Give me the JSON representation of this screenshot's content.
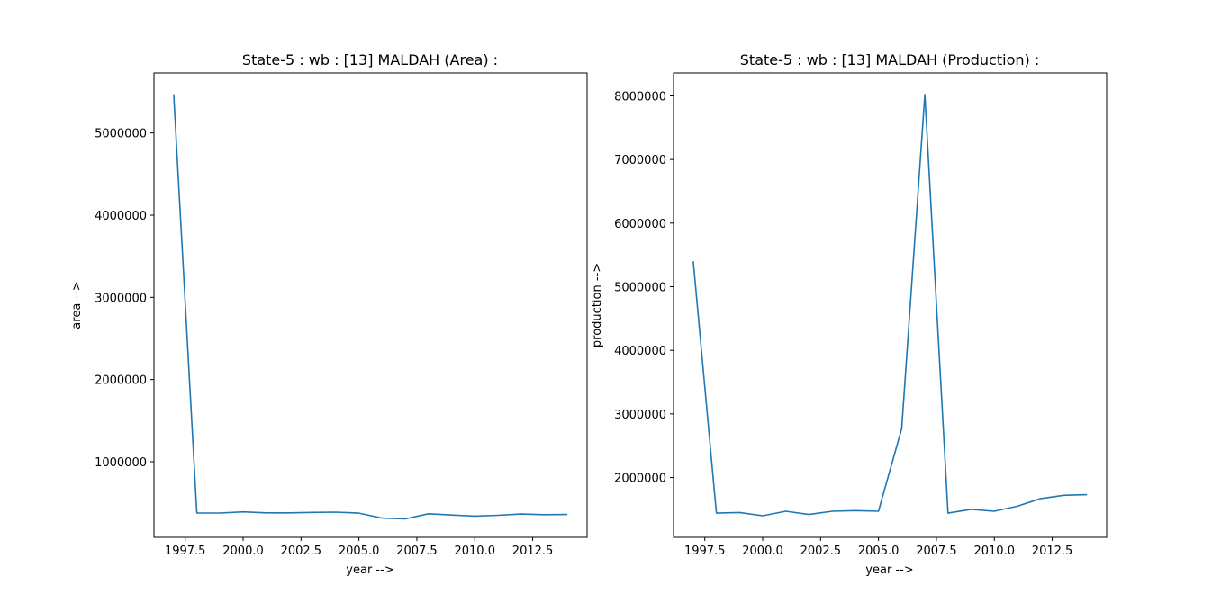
{
  "chart_data": [
    {
      "type": "line",
      "title": "State-5 : wb : [13] MALDAH (Area) :",
      "xlabel": "year -->",
      "ylabel": "area -->",
      "xlim": [
        1996.15,
        2014.85
      ],
      "ylim": [
        80000,
        5730000
      ],
      "xticks": [
        1997.5,
        2000.0,
        2002.5,
        2005.0,
        2007.5,
        2010.0,
        2012.5
      ],
      "xtick_labels": [
        "1997.5",
        "2000.0",
        "2002.5",
        "2005.0",
        "2007.5",
        "2010.0",
        "2012.5"
      ],
      "yticks": [
        1000000,
        2000000,
        3000000,
        4000000,
        5000000
      ],
      "ytick_labels": [
        "1000000",
        "2000000",
        "3000000",
        "4000000",
        "5000000"
      ],
      "line_color": "#1f77b4",
      "grid": false,
      "x": [
        1997,
        1998,
        1999,
        2000,
        2001,
        2002,
        2003,
        2004,
        2005,
        2006,
        2007,
        2008,
        2009,
        2010,
        2011,
        2012,
        2013,
        2014
      ],
      "y": [
        5470000,
        376000,
        376000,
        390000,
        378000,
        378000,
        383000,
        387000,
        374000,
        314000,
        304000,
        367000,
        352000,
        338000,
        348000,
        364000,
        356000,
        358000
      ]
    },
    {
      "type": "line",
      "title": "State-5 : wb : [13] MALDAH (Production) :",
      "xlabel": "year -->",
      "ylabel": "production -->",
      "xlim": [
        1996.15,
        2014.85
      ],
      "ylim": [
        1060000,
        8360000
      ],
      "xticks": [
        1997.5,
        2000.0,
        2002.5,
        2005.0,
        2007.5,
        2010.0,
        2012.5
      ],
      "xtick_labels": [
        "1997.5",
        "2000.0",
        "2002.5",
        "2005.0",
        "2007.5",
        "2010.0",
        "2012.5"
      ],
      "yticks": [
        2000000,
        3000000,
        4000000,
        5000000,
        6000000,
        7000000,
        8000000
      ],
      "ytick_labels": [
        "2000000",
        "3000000",
        "4000000",
        "5000000",
        "6000000",
        "7000000",
        "8000000"
      ],
      "line_color": "#1f77b4",
      "grid": false,
      "x": [
        1997,
        1998,
        1999,
        2000,
        2001,
        2002,
        2003,
        2004,
        2005,
        2006,
        2007,
        2008,
        2009,
        2010,
        2011,
        2012,
        2013,
        2014
      ],
      "y": [
        5400000,
        1440000,
        1450000,
        1400000,
        1470000,
        1420000,
        1470000,
        1480000,
        1470000,
        2770000,
        8020000,
        1440000,
        1500000,
        1470000,
        1550000,
        1670000,
        1720000,
        1730000
      ]
    }
  ]
}
